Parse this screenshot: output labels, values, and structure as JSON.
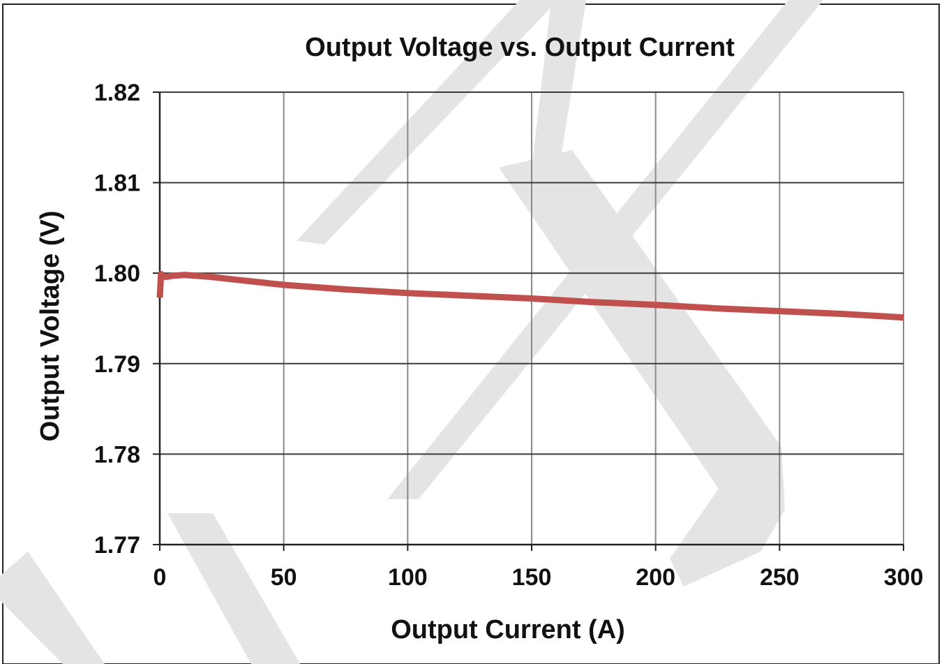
{
  "chart_data": {
    "type": "line",
    "title": "Output Voltage vs.  Output Current",
    "xlabel": "Output Current (A)",
    "ylabel": "Output Voltage (V)",
    "xlim": [
      0,
      300
    ],
    "ylim": [
      1.77,
      1.82
    ],
    "xticks": [
      0,
      50,
      100,
      150,
      200,
      250,
      300
    ],
    "yticks": [
      1.77,
      1.78,
      1.79,
      1.8,
      1.81,
      1.82
    ],
    "ytick_labels": [
      "1.77",
      "1.78",
      "1.79",
      "1.80",
      "1.81",
      "1.82"
    ],
    "grid": true,
    "series": [
      {
        "color": "#c0504d",
        "x": [
          0,
          0.5,
          1,
          3,
          5,
          10,
          20,
          30,
          50,
          75,
          100,
          125,
          150,
          175,
          200,
          225,
          250,
          275,
          300
        ],
        "y": [
          1.7973,
          1.7999,
          1.7996,
          1.7996,
          1.7997,
          1.7998,
          1.7996,
          1.7993,
          1.7987,
          1.7982,
          1.7978,
          1.7975,
          1.7972,
          1.7968,
          1.7965,
          1.7961,
          1.7958,
          1.7955,
          1.7951
        ]
      }
    ],
    "watermark_color": "#e4e4e4"
  }
}
